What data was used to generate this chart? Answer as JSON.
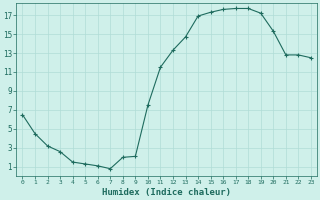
{
  "xlabel": "Humidex (Indice chaleur)",
  "x": [
    0,
    1,
    2,
    3,
    4,
    5,
    6,
    7,
    8,
    9,
    10,
    11,
    12,
    13,
    14,
    15,
    16,
    17,
    18,
    19,
    20,
    21,
    22,
    23
  ],
  "y": [
    6.5,
    4.5,
    3.2,
    2.6,
    1.5,
    1.3,
    1.1,
    0.8,
    2.0,
    2.1,
    7.5,
    11.5,
    13.3,
    14.7,
    16.9,
    17.3,
    17.6,
    17.7,
    17.7,
    17.2,
    15.3,
    12.8,
    12.8,
    12.5
  ],
  "line_color": "#1e6b5e",
  "marker": "+",
  "bg_color": "#cff0ea",
  "grid_color": "#b0ddd7",
  "tick_label_color": "#1e6b5e",
  "axis_label_color": "#1e6b5e",
  "ylim": [
    0,
    18
  ],
  "xlim": [
    -0.5,
    23.5
  ],
  "yticks": [
    1,
    3,
    5,
    7,
    9,
    11,
    13,
    15,
    17
  ],
  "xticks": [
    0,
    1,
    2,
    3,
    4,
    5,
    6,
    7,
    8,
    9,
    10,
    11,
    12,
    13,
    14,
    15,
    16,
    17,
    18,
    19,
    20,
    21,
    22,
    23
  ]
}
